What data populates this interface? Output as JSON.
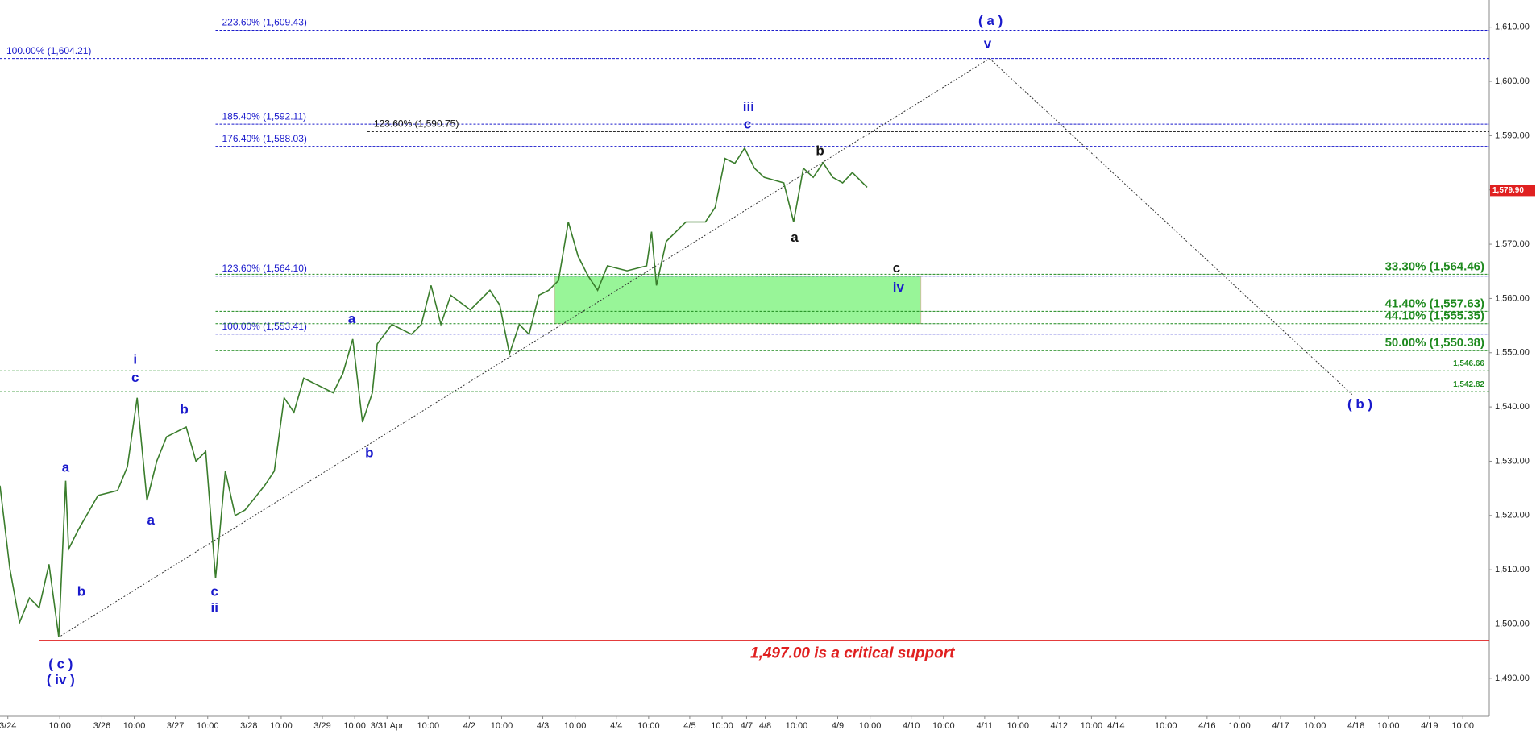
{
  "chart_data": {
    "type": "line",
    "xlim": [
      0,
      152
    ],
    "ylim": [
      1483,
      1615
    ],
    "yticks": [
      {
        "value": 1490,
        "label": "1,490.00"
      },
      {
        "value": 1500,
        "label": "1,500.00"
      },
      {
        "value": 1510,
        "label": "1,510.00"
      },
      {
        "value": 1520,
        "label": "1,520.00"
      },
      {
        "value": 1530,
        "label": "1,530.00"
      },
      {
        "value": 1540,
        "label": "1,540.00"
      },
      {
        "value": 1550,
        "label": "1,550.00"
      },
      {
        "value": 1560,
        "label": "1,560.00"
      },
      {
        "value": 1570,
        "label": "1,570.00"
      },
      {
        "value": 1580,
        "label": "1,580.00"
      },
      {
        "value": 1590,
        "label": "1,590.00"
      },
      {
        "value": 1600,
        "label": "1,600.00"
      },
      {
        "value": 1610,
        "label": "1,610.00"
      }
    ],
    "xticks": [
      {
        "value": 0.8,
        "label": "3/24"
      },
      {
        "value": 6.1,
        "label": "10:00"
      },
      {
        "value": 10.4,
        "label": "3/26"
      },
      {
        "value": 13.7,
        "label": "10:00"
      },
      {
        "value": 17.9,
        "label": "3/27"
      },
      {
        "value": 21.2,
        "label": "10:00"
      },
      {
        "value": 25.4,
        "label": "3/28"
      },
      {
        "value": 28.7,
        "label": "10:00"
      },
      {
        "value": 32.9,
        "label": "3/29"
      },
      {
        "value": 36.2,
        "label": "10:00"
      },
      {
        "value": 39.5,
        "label": "3/31 Apr"
      },
      {
        "value": 43.7,
        "label": "10:00"
      },
      {
        "value": 47.9,
        "label": "4/2"
      },
      {
        "value": 51.2,
        "label": "10:00"
      },
      {
        "value": 55.4,
        "label": "4/3"
      },
      {
        "value": 58.7,
        "label": "10:00"
      },
      {
        "value": 62.9,
        "label": "4/4"
      },
      {
        "value": 66.2,
        "label": "10:00"
      },
      {
        "value": 70.4,
        "label": "4/5"
      },
      {
        "value": 73.7,
        "label": "10:00"
      },
      {
        "value": 76.2,
        "label": "4/7"
      },
      {
        "value": 78.1,
        "label": "4/8"
      },
      {
        "value": 81.3,
        "label": "10:00"
      },
      {
        "value": 85.5,
        "label": "4/9"
      },
      {
        "value": 88.8,
        "label": "10:00"
      },
      {
        "value": 93.0,
        "label": "4/10"
      },
      {
        "value": 96.3,
        "label": "10:00"
      },
      {
        "value": 100.5,
        "label": "4/11"
      },
      {
        "value": 103.9,
        "label": "10:00"
      },
      {
        "value": 108.1,
        "label": "4/12"
      },
      {
        "value": 111.4,
        "label": "10:00"
      },
      {
        "value": 113.9,
        "label": "4/14"
      },
      {
        "value": 119.0,
        "label": "10:00"
      },
      {
        "value": 123.2,
        "label": "4/16"
      },
      {
        "value": 126.5,
        "label": "10:00"
      },
      {
        "value": 130.7,
        "label": "4/17"
      },
      {
        "value": 134.2,
        "label": "10:00"
      },
      {
        "value": 138.4,
        "label": "4/18"
      },
      {
        "value": 141.7,
        "label": "10:00"
      },
      {
        "value": 145.9,
        "label": "4/19"
      },
      {
        "value": 149.3,
        "label": "10:00"
      }
    ],
    "price": {
      "color": "#3a7d2c",
      "x": [
        0,
        1,
        2,
        3,
        4,
        5,
        6,
        6.7,
        7,
        8,
        10,
        12,
        13,
        14,
        15,
        16,
        17,
        19,
        20,
        21,
        22,
        23,
        24,
        25,
        27,
        28,
        29,
        30,
        31,
        34,
        35,
        36,
        37,
        38,
        38.5,
        40,
        42,
        43,
        44,
        45,
        46,
        48,
        50,
        51,
        52,
        53,
        54,
        55,
        56,
        57,
        58,
        59,
        60,
        61,
        62,
        64,
        66,
        66.5,
        67,
        68,
        70,
        72,
        73,
        74,
        75,
        76,
        77,
        78,
        80,
        81,
        82,
        83,
        84,
        85,
        86,
        87,
        88.5
      ],
      "values": [
        1525.5,
        1510.2,
        1500.3,
        1504.8,
        1503,
        1511,
        1497.6,
        1526.4,
        1513.8,
        1517.4,
        1523.7,
        1524.6,
        1529,
        1541.7,
        1522.8,
        1530,
        1534.5,
        1536.3,
        1530,
        1531.8,
        1508.4,
        1528.2,
        1520,
        1521,
        1525.5,
        1528.2,
        1541.7,
        1539,
        1545.3,
        1542.6,
        1546.2,
        1552.5,
        1537.2,
        1542.6,
        1551.6,
        1555.2,
        1553.4,
        1555.2,
        1562.4,
        1555.2,
        1560.6,
        1557.9,
        1561.5,
        1558.8,
        1549.8,
        1555.2,
        1553.4,
        1560.6,
        1561.5,
        1563.3,
        1574.1,
        1567.8,
        1564.2,
        1561.5,
        1566,
        1565.1,
        1566,
        1572.3,
        1562.4,
        1570.5,
        1574.1,
        1574.1,
        1576.8,
        1585.8,
        1584.9,
        1587.7,
        1584,
        1582.3,
        1581.3,
        1574.1,
        1584,
        1582.3,
        1585,
        1582.3,
        1581.3,
        1583.2,
        1580.5
      ]
    },
    "last_price": {
      "value": 1579.9,
      "label": "1,579.90",
      "color": "#e02020"
    },
    "levels": [
      {
        "label": "223.60% (1,609.43)",
        "value": 1609.43,
        "color": "#1a1acc",
        "start": 22,
        "align": "left"
      },
      {
        "label": "100.00% (1,604.21)",
        "value": 1604.21,
        "color": "#1a1acc",
        "start": 0,
        "align": "left"
      },
      {
        "label": "185.40% (1,592.11)",
        "value": 1592.11,
        "color": "#1a1acc",
        "start": 22,
        "align": "left"
      },
      {
        "label": "123.60% (1,590.75)",
        "value": 1590.75,
        "color": "#111111",
        "start": 37.5,
        "align": "left"
      },
      {
        "label": "176.40% (1,588.03)",
        "value": 1588.03,
        "color": "#1a1acc",
        "start": 22,
        "align": "left"
      },
      {
        "label": "123.60% (1,564.10)",
        "value": 1564.1,
        "color": "#1a1acc",
        "start": 22,
        "align": "left"
      },
      {
        "label": "100.00% (1,553.41)",
        "value": 1553.41,
        "color": "#1a1acc",
        "start": 22,
        "align": "left"
      },
      {
        "label": "33.30% (1,564.46)",
        "value": 1564.46,
        "color": "#1e8a1e",
        "start": 22,
        "align": "right"
      },
      {
        "label": "41.40% (1,557.63)",
        "value": 1557.63,
        "color": "#1e8a1e",
        "start": 22,
        "align": "right"
      },
      {
        "label": "44.10% (1,555.35)",
        "value": 1555.35,
        "color": "#1e8a1e",
        "start": 22,
        "align": "right"
      },
      {
        "label": "50.00% (1,550.38)",
        "value": 1550.38,
        "color": "#1e8a1e",
        "start": 22,
        "align": "right"
      },
      {
        "label": "1,546.66",
        "value": 1546.66,
        "color": "#1e8a1e",
        "start": 0,
        "align": "right"
      },
      {
        "label": "1,542.82",
        "value": 1542.82,
        "color": "#1e8a1e",
        "start": 0,
        "align": "right"
      }
    ],
    "zone": {
      "x": [
        56.6,
        94
      ],
      "y": [
        1555.35,
        1564.1
      ],
      "color": "#98f598"
    },
    "support": {
      "value": 1497,
      "label": "1,497.00 is a critical support",
      "color": "#e02020",
      "start": 4,
      "text_x": 87,
      "text_y": 1494.5
    },
    "trendlines": [
      {
        "x": [
          6.2,
          101
        ],
        "y": [
          1497.8,
          1604.21
        ]
      },
      {
        "x": [
          101,
          138
        ],
        "y": [
          1604.21,
          1542.3
        ]
      }
    ],
    "annotations": [
      {
        "text": "( c )",
        "x": 6.2,
        "y": 1492.5,
        "color": "#1a1acc"
      },
      {
        "text": "( iv )",
        "x": 6.2,
        "y": 1489.6,
        "color": "#1a1acc"
      },
      {
        "text": "a",
        "x": 6.7,
        "y": 1528.7,
        "color": "#1a1acc"
      },
      {
        "text": "b",
        "x": 8.3,
        "y": 1505.9,
        "color": "#1a1acc"
      },
      {
        "text": "i",
        "x": 13.8,
        "y": 1548.6,
        "color": "#1a1acc"
      },
      {
        "text": "c",
        "x": 13.8,
        "y": 1545.3,
        "color": "#1a1acc"
      },
      {
        "text": "a",
        "x": 15.4,
        "y": 1519,
        "color": "#1a1acc"
      },
      {
        "text": "b",
        "x": 18.8,
        "y": 1539.4,
        "color": "#1a1acc"
      },
      {
        "text": "c",
        "x": 21.9,
        "y": 1505.9,
        "color": "#1a1acc"
      },
      {
        "text": "ii",
        "x": 21.9,
        "y": 1502.8,
        "color": "#1a1acc"
      },
      {
        "text": "a",
        "x": 35.9,
        "y": 1556.1,
        "color": "#1a1acc"
      },
      {
        "text": "b",
        "x": 37.7,
        "y": 1531.4,
        "color": "#1a1acc"
      },
      {
        "text": "iii",
        "x": 76.4,
        "y": 1595.2,
        "color": "#1a1acc"
      },
      {
        "text": "c",
        "x": 76.3,
        "y": 1592,
        "color": "#1a1acc"
      },
      {
        "text": "b",
        "x": 83.7,
        "y": 1587.1,
        "color": "#111111"
      },
      {
        "text": "a",
        "x": 81.1,
        "y": 1571.1,
        "color": "#111111"
      },
      {
        "text": "c",
        "x": 91.5,
        "y": 1565.5,
        "color": "#111111"
      },
      {
        "text": "iv",
        "x": 91.7,
        "y": 1561.9,
        "color": "#1a1acc"
      },
      {
        "text": "( a )",
        "x": 101.1,
        "y": 1611.1,
        "color": "#1a1acc"
      },
      {
        "text": "v",
        "x": 100.8,
        "y": 1606.8,
        "color": "#1a1acc"
      },
      {
        "text": "( b )",
        "x": 138.8,
        "y": 1540.4,
        "color": "#1a1acc"
      }
    ]
  }
}
